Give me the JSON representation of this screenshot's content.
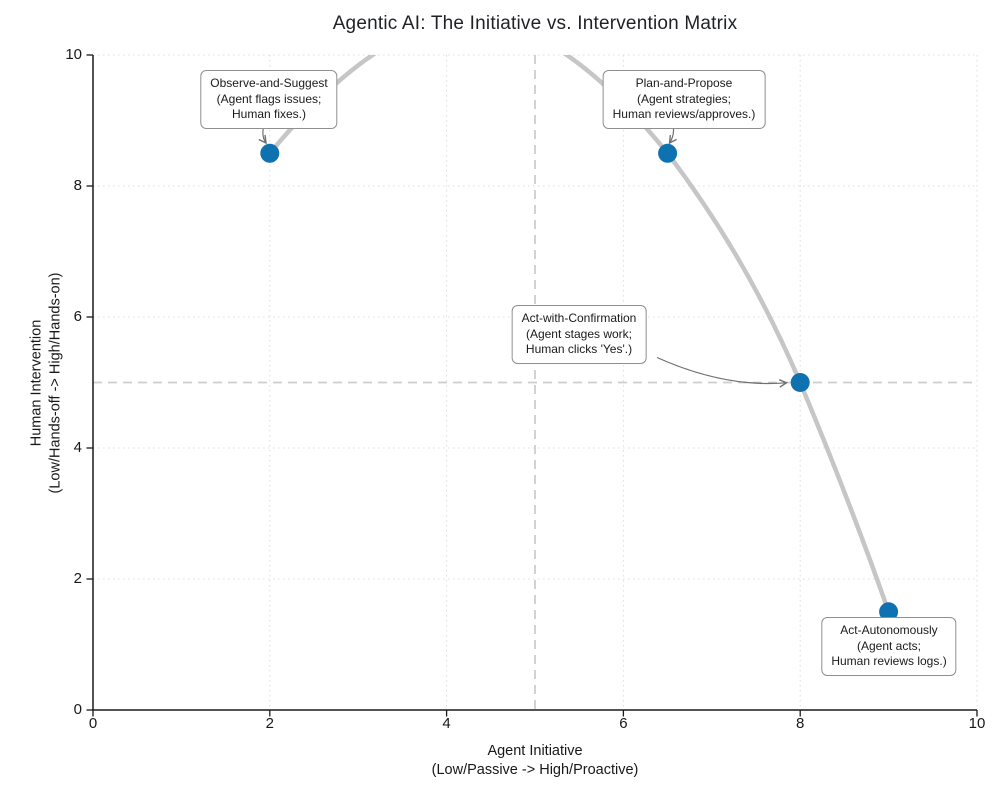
{
  "chart_data": {
    "type": "scatter",
    "title": "Agentic AI: The Initiative vs. Intervention Matrix",
    "xlabel_line1": "Agent Initiative",
    "xlabel_line2": "(Low/Passive -> High/Proactive)",
    "ylabel_line1": "Human Intervention",
    "ylabel_line2": "(Low/Hands-off -> High/Hands-on)",
    "xlim": [
      0,
      10
    ],
    "ylim": [
      0,
      10
    ],
    "x_ticks": [
      "0",
      "2",
      "4",
      "6",
      "8",
      "10"
    ],
    "y_ticks": [
      "0",
      "2",
      "4",
      "6",
      "8",
      "10"
    ],
    "grid": "dotted",
    "legend": "none",
    "quadrant_divider_x": 5,
    "quadrant_divider_y": 5,
    "trend_curve": "smooth gray arc through all four points, peak clipped above y=10 between x≈3.4 and x≈5.5",
    "points": [
      {
        "x": 2,
        "y": 8.5,
        "label": "Observe-and-Suggest",
        "sub1": "(Agent flags issues;",
        "sub2": "Human fixes.)"
      },
      {
        "x": 6.5,
        "y": 8.5,
        "label": "Plan-and-Propose",
        "sub1": "(Agent strategies;",
        "sub2": "Human reviews/approves.)"
      },
      {
        "x": 8,
        "y": 5,
        "label": "Act-with-Confirmation",
        "sub1": "(Agent stages work;",
        "sub2": "Human clicks 'Yes'.)"
      },
      {
        "x": 9,
        "y": 1.5,
        "label": "Act-Autonomously",
        "sub1": "(Agent acts;",
        "sub2": "Human reviews logs.)"
      }
    ],
    "colors": {
      "point": "#0e72b1",
      "curve": "#c6c6c6",
      "quadrant_line": "#cdcdcd",
      "grid": "#dcdcdc",
      "leader": "#707070",
      "box_border": "#8f8f8f",
      "text": "#1a1a1a"
    }
  }
}
